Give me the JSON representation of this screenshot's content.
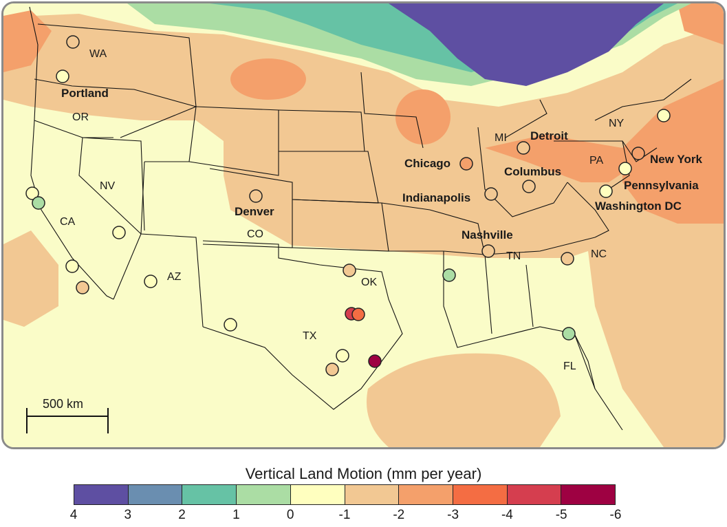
{
  "map": {
    "state_labels": [
      "WA",
      "OR",
      "NV",
      "CA",
      "AZ",
      "CO",
      "TX",
      "OK",
      "TN",
      "NC",
      "FL",
      "MI",
      "PA",
      "NY"
    ],
    "city_labels": [
      "Portland",
      "Denver",
      "Chicago",
      "Detroit",
      "Columbus",
      "Indianapolis",
      "Nashville",
      "New York",
      "Pennsylvania",
      "Washington DC"
    ],
    "scale_bar_label": "500 km"
  },
  "legend": {
    "title": "Vertical Land Motion (mm per year)",
    "tick_labels": [
      "4",
      "3",
      "2",
      "1",
      "0",
      "-1",
      "-2",
      "-3",
      "-4",
      "-5",
      "-6"
    ],
    "colors": [
      "#5e4fa2",
      "#6a8eb0",
      "#66c2a5",
      "#abdda4",
      "#ffffbf",
      "#f2c893",
      "#f4a06b",
      "#f46d43",
      "#d53e4f",
      "#9e0142"
    ]
  },
  "colors": {
    "background_band": "#fafcc8",
    "frame_border": "#8a8a8a"
  }
}
